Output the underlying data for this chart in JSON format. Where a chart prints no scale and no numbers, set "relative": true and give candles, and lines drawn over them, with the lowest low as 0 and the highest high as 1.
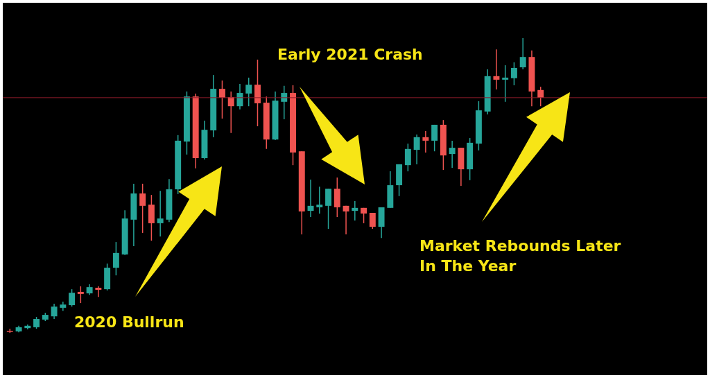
{
  "chart_data": {
    "type": "candlestick",
    "relative": true,
    "categories": [
      null,
      null,
      null,
      null,
      null,
      null,
      null,
      null,
      null,
      null,
      null,
      null,
      null,
      null,
      null,
      null,
      null,
      null,
      null,
      null,
      null,
      null,
      null,
      null,
      null,
      null,
      null,
      null,
      null,
      null,
      null,
      null,
      null,
      null,
      null,
      null,
      null,
      null,
      null,
      null,
      null,
      null,
      null,
      null,
      null,
      null,
      null,
      null,
      null,
      null,
      null,
      null,
      null,
      null,
      null,
      null,
      null,
      null,
      null,
      null,
      null
    ],
    "ohlc": [
      [
        0.007,
        0.014,
        0,
        0.005
      ],
      [
        0.005,
        0.024,
        0.002,
        0.019
      ],
      [
        0.016,
        0.028,
        0.012,
        0.024
      ],
      [
        0.019,
        0.054,
        0.014,
        0.047
      ],
      [
        0.045,
        0.068,
        0.04,
        0.061
      ],
      [
        0.056,
        0.099,
        0.047,
        0.089
      ],
      [
        0.085,
        0.106,
        0.075,
        0.096
      ],
      [
        0.094,
        0.148,
        0.089,
        0.136
      ],
      [
        0.139,
        0.158,
        0.101,
        0.132
      ],
      [
        0.134,
        0.165,
        0.129,
        0.155
      ],
      [
        0.153,
        0.158,
        0.122,
        0.146
      ],
      [
        0.148,
        0.235,
        0.144,
        0.221
      ],
      [
        0.221,
        0.308,
        0.195,
        0.271
      ],
      [
        0.266,
        0.416,
        0.264,
        0.388
      ],
      [
        0.384,
        0.506,
        0.294,
        0.473
      ],
      [
        0.473,
        0.506,
        0.339,
        0.431
      ],
      [
        0.435,
        0.468,
        0.313,
        0.372
      ],
      [
        0.372,
        0.482,
        0.327,
        0.388
      ],
      [
        0.384,
        0.522,
        0.376,
        0.487
      ],
      [
        0.487,
        0.671,
        0.471,
        0.652
      ],
      [
        0.649,
        0.819,
        0.605,
        0.802
      ],
      [
        0.802,
        0.812,
        0.558,
        0.593
      ],
      [
        0.593,
        0.72,
        0.588,
        0.689
      ],
      [
        0.687,
        0.875,
        0.664,
        0.828
      ],
      [
        0.828,
        0.856,
        0.727,
        0.798
      ],
      [
        0.8,
        0.819,
        0.678,
        0.769
      ],
      [
        0.769,
        0.845,
        0.758,
        0.814
      ],
      [
        0.812,
        0.866,
        0.769,
        0.842
      ],
      [
        0.842,
        0.927,
        0.701,
        0.779
      ],
      [
        0.781,
        0.802,
        0.624,
        0.656
      ],
      [
        0.656,
        0.819,
        0.654,
        0.788
      ],
      [
        0.784,
        0.838,
        0.725,
        0.814
      ],
      [
        0.814,
        0.84,
        0.569,
        0.612
      ],
      [
        0.616,
        0.616,
        0.334,
        0.412
      ],
      [
        0.414,
        0.52,
        0.393,
        0.431
      ],
      [
        0.426,
        0.496,
        0.405,
        0.435
      ],
      [
        0.431,
        0.489,
        0.353,
        0.489
      ],
      [
        0.489,
        0.527,
        0.393,
        0.426
      ],
      [
        0.431,
        0.431,
        0.334,
        0.412
      ],
      [
        0.414,
        0.447,
        0.381,
        0.424
      ],
      [
        0.424,
        0.424,
        0.372,
        0.405
      ],
      [
        0.407,
        0.407,
        0.353,
        0.36
      ],
      [
        0.36,
        0.426,
        0.322,
        0.426
      ],
      [
        0.424,
        0.548,
        0.424,
        0.501
      ],
      [
        0.501,
        0.572,
        0.464,
        0.572
      ],
      [
        0.569,
        0.642,
        0.548,
        0.624
      ],
      [
        0.621,
        0.673,
        0.572,
        0.664
      ],
      [
        0.664,
        0.685,
        0.612,
        0.652
      ],
      [
        0.652,
        0.706,
        0.616,
        0.706
      ],
      [
        0.706,
        0.722,
        0.553,
        0.602
      ],
      [
        0.607,
        0.652,
        0.56,
        0.628
      ],
      [
        0.628,
        0.628,
        0.499,
        0.555
      ],
      [
        0.555,
        0.661,
        0.518,
        0.645
      ],
      [
        0.642,
        0.786,
        0.619,
        0.755
      ],
      [
        0.751,
        0.894,
        0.741,
        0.871
      ],
      [
        0.871,
        0.962,
        0.826,
        0.859
      ],
      [
        0.859,
        0.908,
        0.784,
        0.866
      ],
      [
        0.864,
        0.918,
        0.84,
        0.899
      ],
      [
        0.901,
        1,
        0.894,
        0.936
      ],
      [
        0.936,
        0.958,
        0.769,
        0.819
      ],
      [
        0.824,
        0.835,
        0.769,
        0.798
      ]
    ],
    "ref_lines": [
      {
        "axis": "y",
        "value": 0.798,
        "color": "#8b1a2a"
      }
    ],
    "annotations": [
      "Early 2021 Crash",
      "2020 Bullrun",
      "Market Rebounds Later In The Year"
    ]
  }
}
